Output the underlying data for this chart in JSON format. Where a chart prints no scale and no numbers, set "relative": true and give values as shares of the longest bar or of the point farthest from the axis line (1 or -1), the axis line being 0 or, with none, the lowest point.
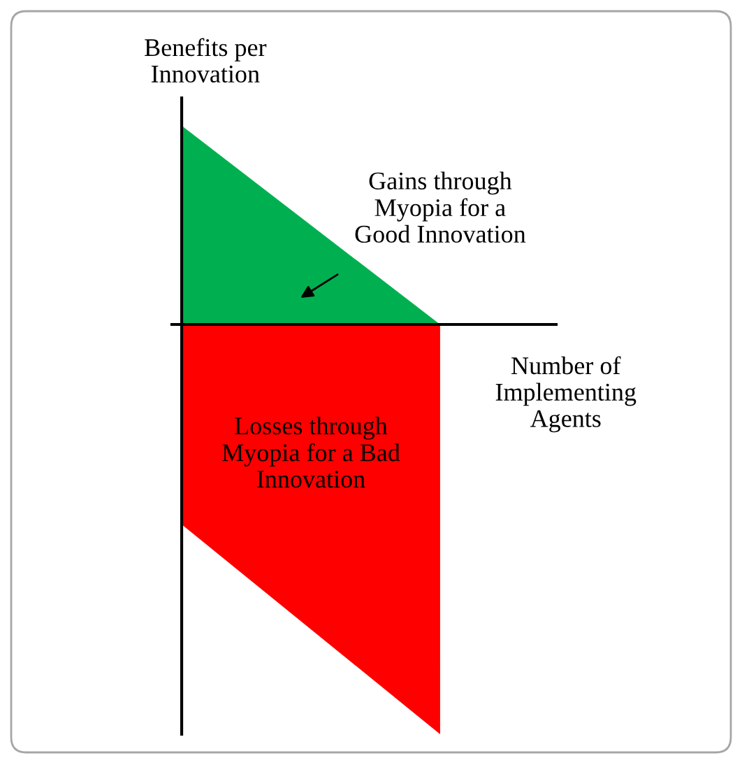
{
  "chart_data": {
    "type": "area",
    "relative": true,
    "xlabel": "Number of\nImplementing\nAgents",
    "ylabel": "Benefits per\nInnovation",
    "categories": [
      null,
      null
    ],
    "series": [
      {
        "color": "#00b050",
        "values": [
          0.485,
          0
        ]
      },
      {
        "color": "#ff0000",
        "values": [
          -0.488,
          -1
        ]
      }
    ],
    "annotations": [
      "Gains through\nMyopia for a\nGood Innovation",
      "Losses through\nMyopia for a Bad\nInnovation"
    ],
    "legend": false
  }
}
